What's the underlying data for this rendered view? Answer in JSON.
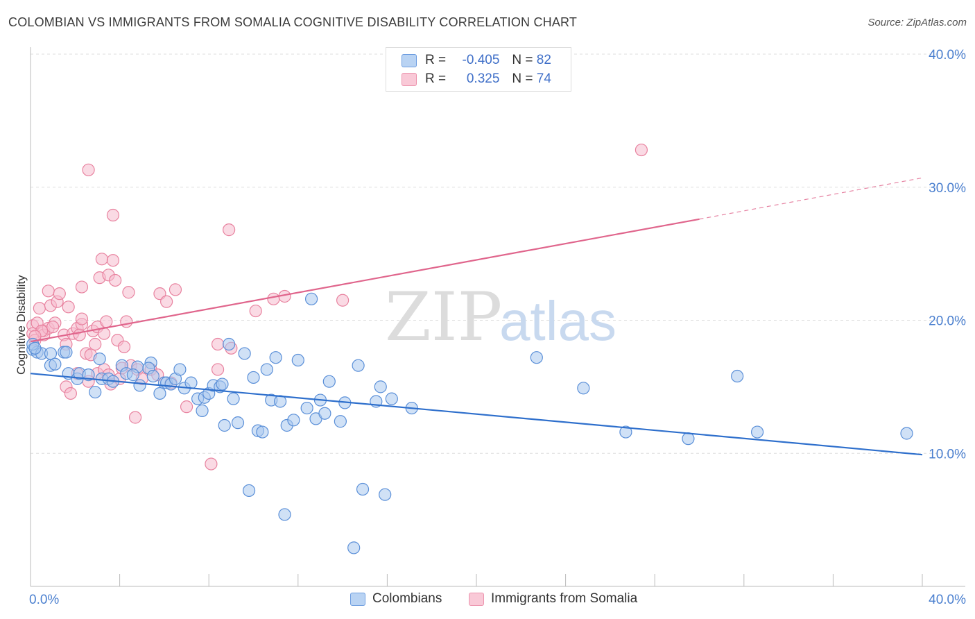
{
  "header": {
    "title": "COLOMBIAN VS IMMIGRANTS FROM SOMALIA COGNITIVE DISABILITY CORRELATION CHART",
    "source": "Source: ZipAtlas.com"
  },
  "legend": {
    "rows": [
      {
        "r_label": "R =",
        "r_value": "-0.405",
        "n_label": "N =",
        "n_value": "82"
      },
      {
        "r_label": "R =",
        "r_value": "0.325",
        "n_label": "N =",
        "n_value": "74"
      }
    ]
  },
  "watermark": {
    "zip": "ZIP",
    "atlas": "atlas"
  },
  "colors": {
    "blue_fill": "#aac8ef",
    "blue_stroke": "#5a8fd8",
    "blue_line": "#2e6fcc",
    "pink_fill": "#f6bccd",
    "pink_stroke": "#e8829f",
    "pink_line": "#e0658c",
    "axis_text": "#4a7fcf",
    "grid": "#dddddd"
  },
  "chart_data": {
    "type": "scatter",
    "ylabel": "Cognitive Disability",
    "xlim": [
      0,
      40
    ],
    "ylim": [
      0,
      40
    ],
    "x_tick_labels": [
      "0.0%",
      "40.0%"
    ],
    "y_tick_labels": [
      "10.0%",
      "20.0%",
      "30.0%",
      "40.0%"
    ],
    "y_tick_values": [
      10,
      20,
      30,
      40
    ],
    "grid": "horizontal dashed",
    "legend_position": "top-center",
    "series": [
      {
        "name": "Colombians",
        "color": "#5a8fd8",
        "points": [
          [
            0.1,
            17.8
          ],
          [
            0.3,
            17.6
          ],
          [
            0.5,
            17.5
          ],
          [
            0.9,
            17.5
          ],
          [
            1.5,
            17.6
          ],
          [
            0.9,
            16.6
          ],
          [
            1.1,
            16.7
          ],
          [
            1.6,
            17.6
          ],
          [
            1.7,
            16.0
          ],
          [
            2.1,
            15.6
          ],
          [
            2.2,
            16.0
          ],
          [
            2.6,
            15.9
          ],
          [
            2.9,
            14.6
          ],
          [
            3.1,
            17.1
          ],
          [
            3.2,
            15.6
          ],
          [
            3.5,
            15.6
          ],
          [
            3.7,
            15.4
          ],
          [
            4.1,
            16.6
          ],
          [
            4.3,
            16.0
          ],
          [
            4.8,
            16.5
          ],
          [
            4.6,
            15.9
          ],
          [
            5.4,
            16.8
          ],
          [
            5.3,
            16.4
          ],
          [
            4.9,
            15.1
          ],
          [
            5.5,
            15.8
          ],
          [
            5.8,
            14.5
          ],
          [
            6.0,
            15.3
          ],
          [
            6.1,
            15.3
          ],
          [
            6.3,
            15.2
          ],
          [
            6.5,
            15.6
          ],
          [
            6.7,
            16.3
          ],
          [
            6.9,
            14.9
          ],
          [
            7.2,
            15.3
          ],
          [
            7.5,
            14.1
          ],
          [
            7.7,
            13.2
          ],
          [
            7.8,
            14.2
          ],
          [
            8.0,
            14.5
          ],
          [
            8.2,
            15.1
          ],
          [
            8.5,
            15.0
          ],
          [
            8.6,
            15.2
          ],
          [
            8.7,
            12.1
          ],
          [
            8.9,
            18.2
          ],
          [
            9.1,
            14.1
          ],
          [
            9.3,
            12.3
          ],
          [
            9.6,
            17.5
          ],
          [
            9.8,
            7.2
          ],
          [
            10.0,
            15.7
          ],
          [
            10.2,
            11.7
          ],
          [
            10.4,
            11.6
          ],
          [
            10.6,
            16.3
          ],
          [
            10.8,
            14.0
          ],
          [
            11.0,
            17.2
          ],
          [
            11.2,
            13.9
          ],
          [
            11.4,
            5.4
          ],
          [
            11.5,
            12.1
          ],
          [
            11.8,
            12.5
          ],
          [
            12.0,
            17.0
          ],
          [
            12.4,
            13.4
          ],
          [
            12.6,
            21.6
          ],
          [
            12.8,
            12.6
          ],
          [
            13.0,
            14.0
          ],
          [
            13.2,
            13.0
          ],
          [
            13.4,
            15.4
          ],
          [
            13.9,
            12.4
          ],
          [
            14.1,
            13.8
          ],
          [
            14.5,
            2.9
          ],
          [
            14.7,
            16.6
          ],
          [
            14.9,
            7.3
          ],
          [
            15.5,
            13.9
          ],
          [
            15.7,
            15.0
          ],
          [
            15.9,
            6.9
          ],
          [
            16.2,
            14.1
          ],
          [
            17.1,
            13.4
          ],
          [
            22.7,
            17.2
          ],
          [
            24.8,
            14.9
          ],
          [
            26.7,
            11.6
          ],
          [
            29.5,
            11.1
          ],
          [
            31.7,
            15.8
          ],
          [
            32.6,
            11.6
          ],
          [
            39.3,
            11.5
          ],
          [
            0.1,
            18.2
          ],
          [
            0.2,
            17.9
          ]
        ]
      },
      {
        "name": "Immigrants from Somalia",
        "color": "#e8829f",
        "points": [
          [
            0.1,
            19.6
          ],
          [
            0.1,
            19.0
          ],
          [
            0.2,
            18.5
          ],
          [
            0.3,
            19.8
          ],
          [
            0.4,
            20.9
          ],
          [
            0.6,
            19.2
          ],
          [
            0.6,
            18.9
          ],
          [
            0.8,
            19.4
          ],
          [
            0.8,
            22.2
          ],
          [
            0.9,
            21.1
          ],
          [
            1.1,
            19.8
          ],
          [
            1.2,
            21.4
          ],
          [
            1.3,
            22.0
          ],
          [
            1.5,
            18.9
          ],
          [
            1.6,
            18.2
          ],
          [
            1.6,
            15.0
          ],
          [
            1.7,
            21.0
          ],
          [
            1.8,
            14.5
          ],
          [
            1.9,
            19.0
          ],
          [
            2.1,
            16.0
          ],
          [
            2.1,
            19.4
          ],
          [
            2.2,
            18.9
          ],
          [
            2.3,
            19.7
          ],
          [
            2.3,
            20.1
          ],
          [
            2.3,
            22.5
          ],
          [
            2.5,
            17.5
          ],
          [
            2.6,
            15.4
          ],
          [
            2.6,
            31.3
          ],
          [
            2.7,
            17.4
          ],
          [
            2.8,
            19.2
          ],
          [
            2.9,
            18.2
          ],
          [
            3.0,
            16.0
          ],
          [
            3.0,
            19.5
          ],
          [
            3.1,
            23.2
          ],
          [
            3.2,
            24.6
          ],
          [
            3.3,
            16.3
          ],
          [
            3.3,
            19.0
          ],
          [
            3.4,
            19.9
          ],
          [
            3.5,
            23.4
          ],
          [
            3.5,
            15.9
          ],
          [
            3.6,
            15.2
          ],
          [
            3.7,
            24.5
          ],
          [
            3.7,
            27.9
          ],
          [
            3.8,
            23.0
          ],
          [
            3.9,
            18.5
          ],
          [
            4.0,
            15.6
          ],
          [
            4.1,
            16.4
          ],
          [
            4.2,
            18.0
          ],
          [
            4.3,
            19.9
          ],
          [
            4.4,
            22.1
          ],
          [
            4.5,
            16.6
          ],
          [
            4.7,
            12.7
          ],
          [
            4.8,
            16.3
          ],
          [
            5.0,
            15.6
          ],
          [
            5.4,
            16.3
          ],
          [
            5.7,
            15.9
          ],
          [
            5.8,
            22.0
          ],
          [
            6.1,
            21.4
          ],
          [
            6.3,
            15.3
          ],
          [
            6.5,
            22.3
          ],
          [
            7.0,
            13.5
          ],
          [
            8.1,
            9.2
          ],
          [
            8.4,
            18.2
          ],
          [
            8.4,
            16.3
          ],
          [
            8.9,
            26.8
          ],
          [
            9.0,
            17.9
          ],
          [
            10.1,
            20.7
          ],
          [
            10.9,
            21.6
          ],
          [
            11.4,
            21.8
          ],
          [
            14.0,
            21.5
          ],
          [
            27.4,
            32.8
          ],
          [
            0.5,
            19.2
          ],
          [
            1.0,
            19.5
          ],
          [
            0.2,
            18.8
          ]
        ]
      }
    ],
    "trendlines": [
      {
        "series": "Colombians",
        "x0": 0,
        "y0": 16.0,
        "x1": 40,
        "y1": 9.9
      },
      {
        "series": "Immigrants from Somalia",
        "x0": 0,
        "y0": 18.4,
        "x1": 30,
        "y1": 27.6,
        "dashed_to_x": 40,
        "dashed_to_y": 30.7
      }
    ]
  },
  "bottom_legend": {
    "items": [
      "Colombians",
      "Immigrants from Somalia"
    ]
  }
}
